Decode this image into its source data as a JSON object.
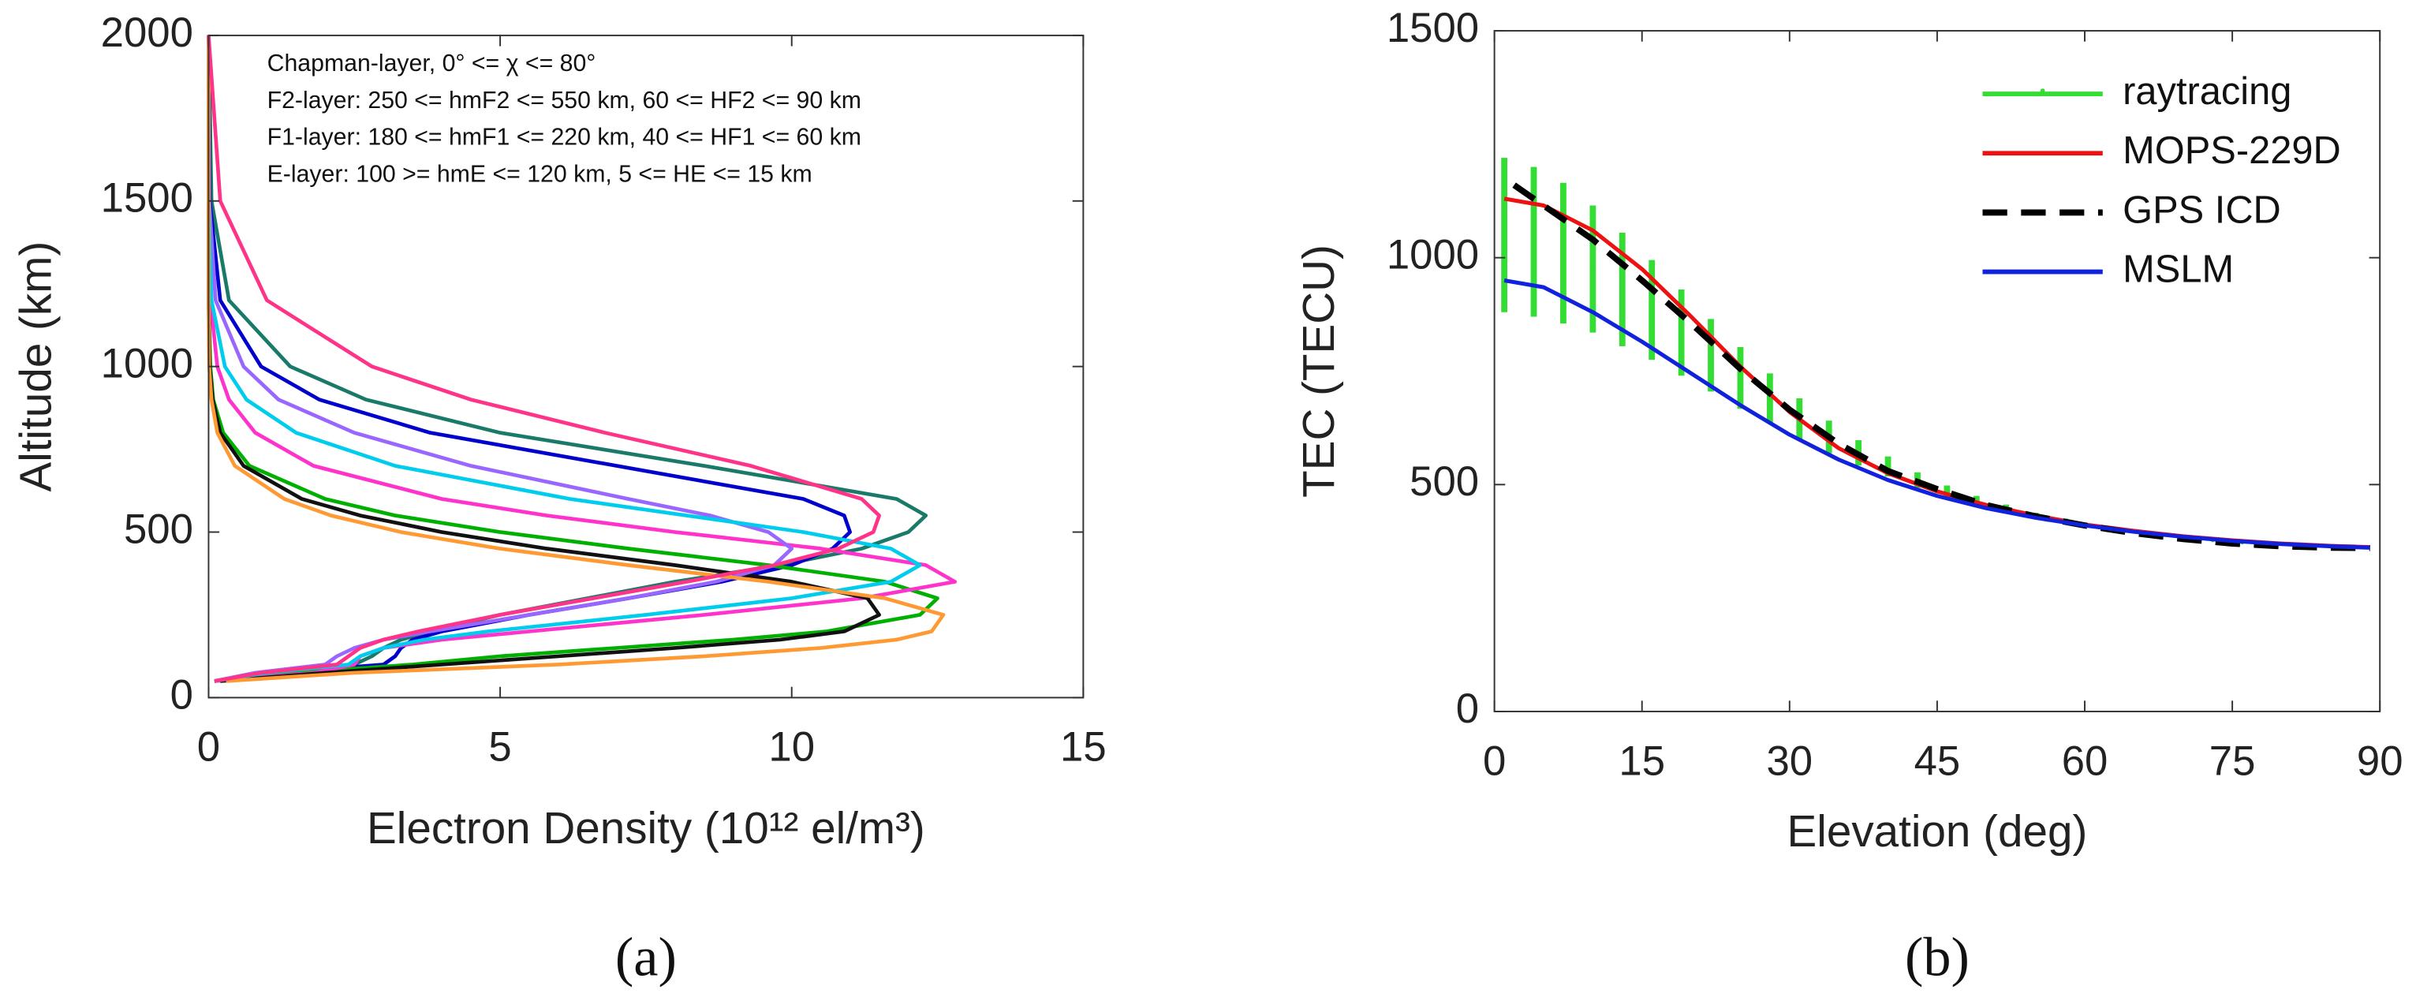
{
  "chart_data": [
    {
      "type": "line",
      "label": "(a)",
      "xlabel": "Electron Density (10¹² el/m³)",
      "ylabel": "Altitude (km)",
      "annotations": [
        "Chapman-layer, 0° <= χ <= 80°",
        "F2-layer: 250 <= hmF2 <= 550 km, 60 <= HF2 <= 90 km",
        "F1-layer: 180 <= hmF1 <= 220 km, 40 <= HF1 <= 60 km",
        "E-layer: 100 >= hmE <= 120 km, 5 <= HE <= 15 km"
      ],
      "xlim": [
        0,
        15
      ],
      "xticks": [
        0,
        5,
        10,
        15
      ],
      "ylim": [
        0,
        2000
      ],
      "yticks": [
        0,
        500,
        1000,
        1500,
        2000
      ],
      "y": [
        50,
        75,
        100,
        125,
        150,
        175,
        200,
        250,
        300,
        350,
        400,
        450,
        500,
        550,
        600,
        700,
        800,
        900,
        1000,
        1200,
        1500,
        2000
      ],
      "series": [
        {
          "color": "#1a7a6a",
          "values": [
            0.1,
            1,
            2.5,
            2.8,
            3,
            3.3,
            3.8,
            5,
            6.5,
            8,
            9.8,
            11.2,
            12,
            12.3,
            11.8,
            8.5,
            5,
            2.7,
            1.4,
            0.35,
            0.05,
            0
          ]
        },
        {
          "color": "#0000cc",
          "values": [
            0.1,
            1.2,
            3,
            3.2,
            3.3,
            3.5,
            4,
            5.5,
            7.2,
            8.8,
            10,
            10.7,
            11,
            10.9,
            10.2,
            7,
            3.8,
            1.9,
            0.9,
            0.2,
            0.02,
            0
          ]
        },
        {
          "color": "#00b000",
          "values": [
            0.2,
            1.5,
            3.5,
            5,
            7,
            9,
            10.6,
            12.2,
            12.5,
            11.6,
            9.6,
            7.2,
            5,
            3.2,
            2,
            0.7,
            0.25,
            0.08,
            0.03,
            0,
            0,
            0
          ]
        },
        {
          "color": "#ff33cc",
          "values": [
            0.1,
            1.8,
            2.5,
            2.6,
            3,
            4,
            5.5,
            8.5,
            11.2,
            12.8,
            12.3,
            10.5,
            8,
            5.8,
            4,
            1.8,
            0.8,
            0.35,
            0.15,
            0.03,
            0,
            0
          ]
        },
        {
          "color": "#111111",
          "values": [
            0.2,
            2,
            4,
            6,
            8,
            9.8,
            10.9,
            11.5,
            11.3,
            10,
            8,
            5.8,
            4,
            2.6,
            1.6,
            0.6,
            0.2,
            0.07,
            0.02,
            0,
            0,
            0
          ]
        },
        {
          "color": "#9966ff",
          "values": [
            0.1,
            0.8,
            2,
            2.2,
            2.5,
            3,
            3.8,
            5.5,
            7.2,
            8.7,
            9.7,
            10,
            9.6,
            8.6,
            7.2,
            4.5,
            2.5,
            1.2,
            0.6,
            0.12,
            0.01,
            0
          ]
        },
        {
          "color": "#00ccee",
          "values": [
            0.1,
            1,
            2.4,
            2.6,
            3,
            3.7,
            4.8,
            7.5,
            10,
            11.7,
            12.2,
            11.7,
            10.2,
            8.2,
            6.2,
            3.2,
            1.5,
            0.65,
            0.28,
            0.05,
            0,
            0
          ]
        },
        {
          "color": "#ff9933",
          "values": [
            0.3,
            2.5,
            6,
            8.5,
            10.5,
            11.8,
            12.4,
            12.6,
            11.6,
            9.6,
            7.2,
            5,
            3.3,
            2.1,
            1.3,
            0.45,
            0.15,
            0.05,
            0.01,
            0,
            0,
            0
          ]
        },
        {
          "color": "#ff3388",
          "values": [
            0.1,
            0.9,
            2.2,
            2.4,
            2.6,
            3,
            3.6,
            5,
            6.6,
            8.2,
            9.7,
            10.8,
            11.4,
            11.5,
            11.2,
            9.3,
            6.8,
            4.5,
            2.8,
            1,
            0.2,
            0
          ]
        }
      ]
    },
    {
      "type": "line",
      "label": "(b)",
      "xlabel": "Elevation (deg)",
      "ylabel": "TEC (TECU)",
      "xlim": [
        0,
        90
      ],
      "xticks": [
        0,
        15,
        30,
        45,
        60,
        75,
        90
      ],
      "ylim": [
        0,
        1500
      ],
      "yticks": [
        0,
        500,
        1000,
        1500
      ],
      "legend": "upper right",
      "series": [
        {
          "name": "raytracing",
          "color": "#33dd33",
          "x": [
            1,
            4,
            7,
            10,
            13,
            16,
            19,
            22,
            25,
            28,
            31,
            34,
            37,
            40,
            43,
            46,
            49,
            52,
            55,
            58,
            61,
            64,
            67,
            70,
            73,
            76,
            79,
            82,
            85,
            88
          ],
          "values": [
            1050,
            1035,
            1010,
            975,
            930,
            885,
            835,
            785,
            735,
            690,
            645,
            605,
            570,
            540,
            510,
            485,
            465,
            448,
            432,
            420,
            408,
            398,
            390,
            383,
            377,
            372,
            368,
            365,
            363,
            362
          ],
          "errors": [
            170,
            165,
            155,
            140,
            125,
            110,
            95,
            80,
            68,
            55,
            45,
            36,
            28,
            22,
            17,
            13,
            10,
            8,
            6,
            5,
            4,
            3,
            2,
            2,
            1,
            1,
            1,
            1,
            1,
            1
          ]
        },
        {
          "name": "MOPS-229D",
          "color": "#ee1111",
          "x": [
            1,
            5,
            10,
            15,
            20,
            25,
            30,
            35,
            40,
            45,
            50,
            55,
            60,
            65,
            70,
            75,
            80,
            85,
            89
          ],
          "values": [
            1130,
            1115,
            1060,
            975,
            870,
            760,
            660,
            580,
            525,
            485,
            455,
            432,
            412,
            398,
            386,
            377,
            370,
            365,
            362
          ]
        },
        {
          "name": "GPS ICD",
          "color": "#000000",
          "dashed": true,
          "x": [
            2,
            5,
            10,
            15,
            20,
            25,
            30,
            35,
            40,
            45,
            50,
            55,
            60,
            65,
            70,
            75,
            80,
            85,
            89
          ],
          "values": [
            1160,
            1115,
            1040,
            950,
            855,
            755,
            665,
            590,
            530,
            490,
            455,
            430,
            410,
            393,
            380,
            370,
            364,
            361,
            360
          ]
        },
        {
          "name": "MSLM",
          "color": "#1122dd",
          "x": [
            1,
            5,
            10,
            15,
            20,
            25,
            30,
            35,
            40,
            45,
            50,
            55,
            60,
            65,
            70,
            75,
            80,
            85,
            89
          ],
          "values": [
            950,
            935,
            880,
            815,
            745,
            675,
            610,
            555,
            510,
            475,
            448,
            427,
            410,
            396,
            385,
            376,
            369,
            364,
            361
          ]
        }
      ]
    }
  ]
}
